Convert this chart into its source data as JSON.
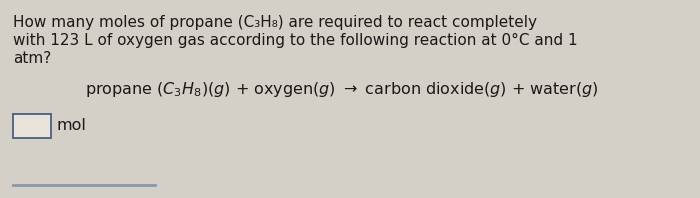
{
  "background_color": "#d4cfc7",
  "line1": "How many moles of propane (C₃H₈) are required to react completely",
  "line2": "with 123 L of oxygen gas according to the following reaction at 0°C and 1",
  "line3": "atm?",
  "equation": "propane $(C_3H_8)(g)$ + oxygen$(g)$ $\\rightarrow$ carbon dioxide$(g)$ + water$(g)$",
  "answer_label": "mol",
  "text_color": "#1a1a1a",
  "box_facecolor": "#e8e4dc",
  "box_edgecolor": "#4a6080",
  "bottom_line_color": "#8899aa",
  "font_size_body": 11.0,
  "font_size_equation": 11.5,
  "font_size_answer": 11.5
}
